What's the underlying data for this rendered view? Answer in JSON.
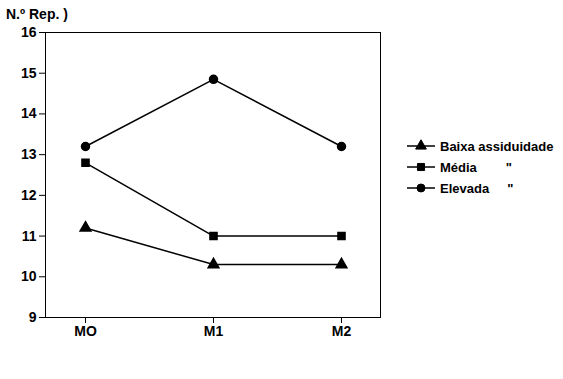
{
  "chart_data": {
    "type": "line",
    "ylabel": "N.º Rep. )",
    "categories": [
      "MO",
      "M1",
      "M2"
    ],
    "series": [
      {
        "name": "Baixa assiduidade",
        "color": "#000000",
        "marker": "triangle",
        "values": [
          11.2,
          10.3,
          10.3
        ]
      },
      {
        "name": "Média        \"",
        "color": "#000000",
        "marker": "square",
        "values": [
          12.8,
          11.0,
          11.0
        ]
      },
      {
        "name": "Elevada     \"",
        "color": "#000000",
        "marker": "circle",
        "values": [
          13.2,
          14.85,
          13.2
        ]
      }
    ],
    "ylim": [
      9,
      16
    ],
    "yticks": [
      9,
      10,
      11,
      12,
      13,
      14,
      15,
      16
    ],
    "grid": false,
    "legend": "right"
  }
}
